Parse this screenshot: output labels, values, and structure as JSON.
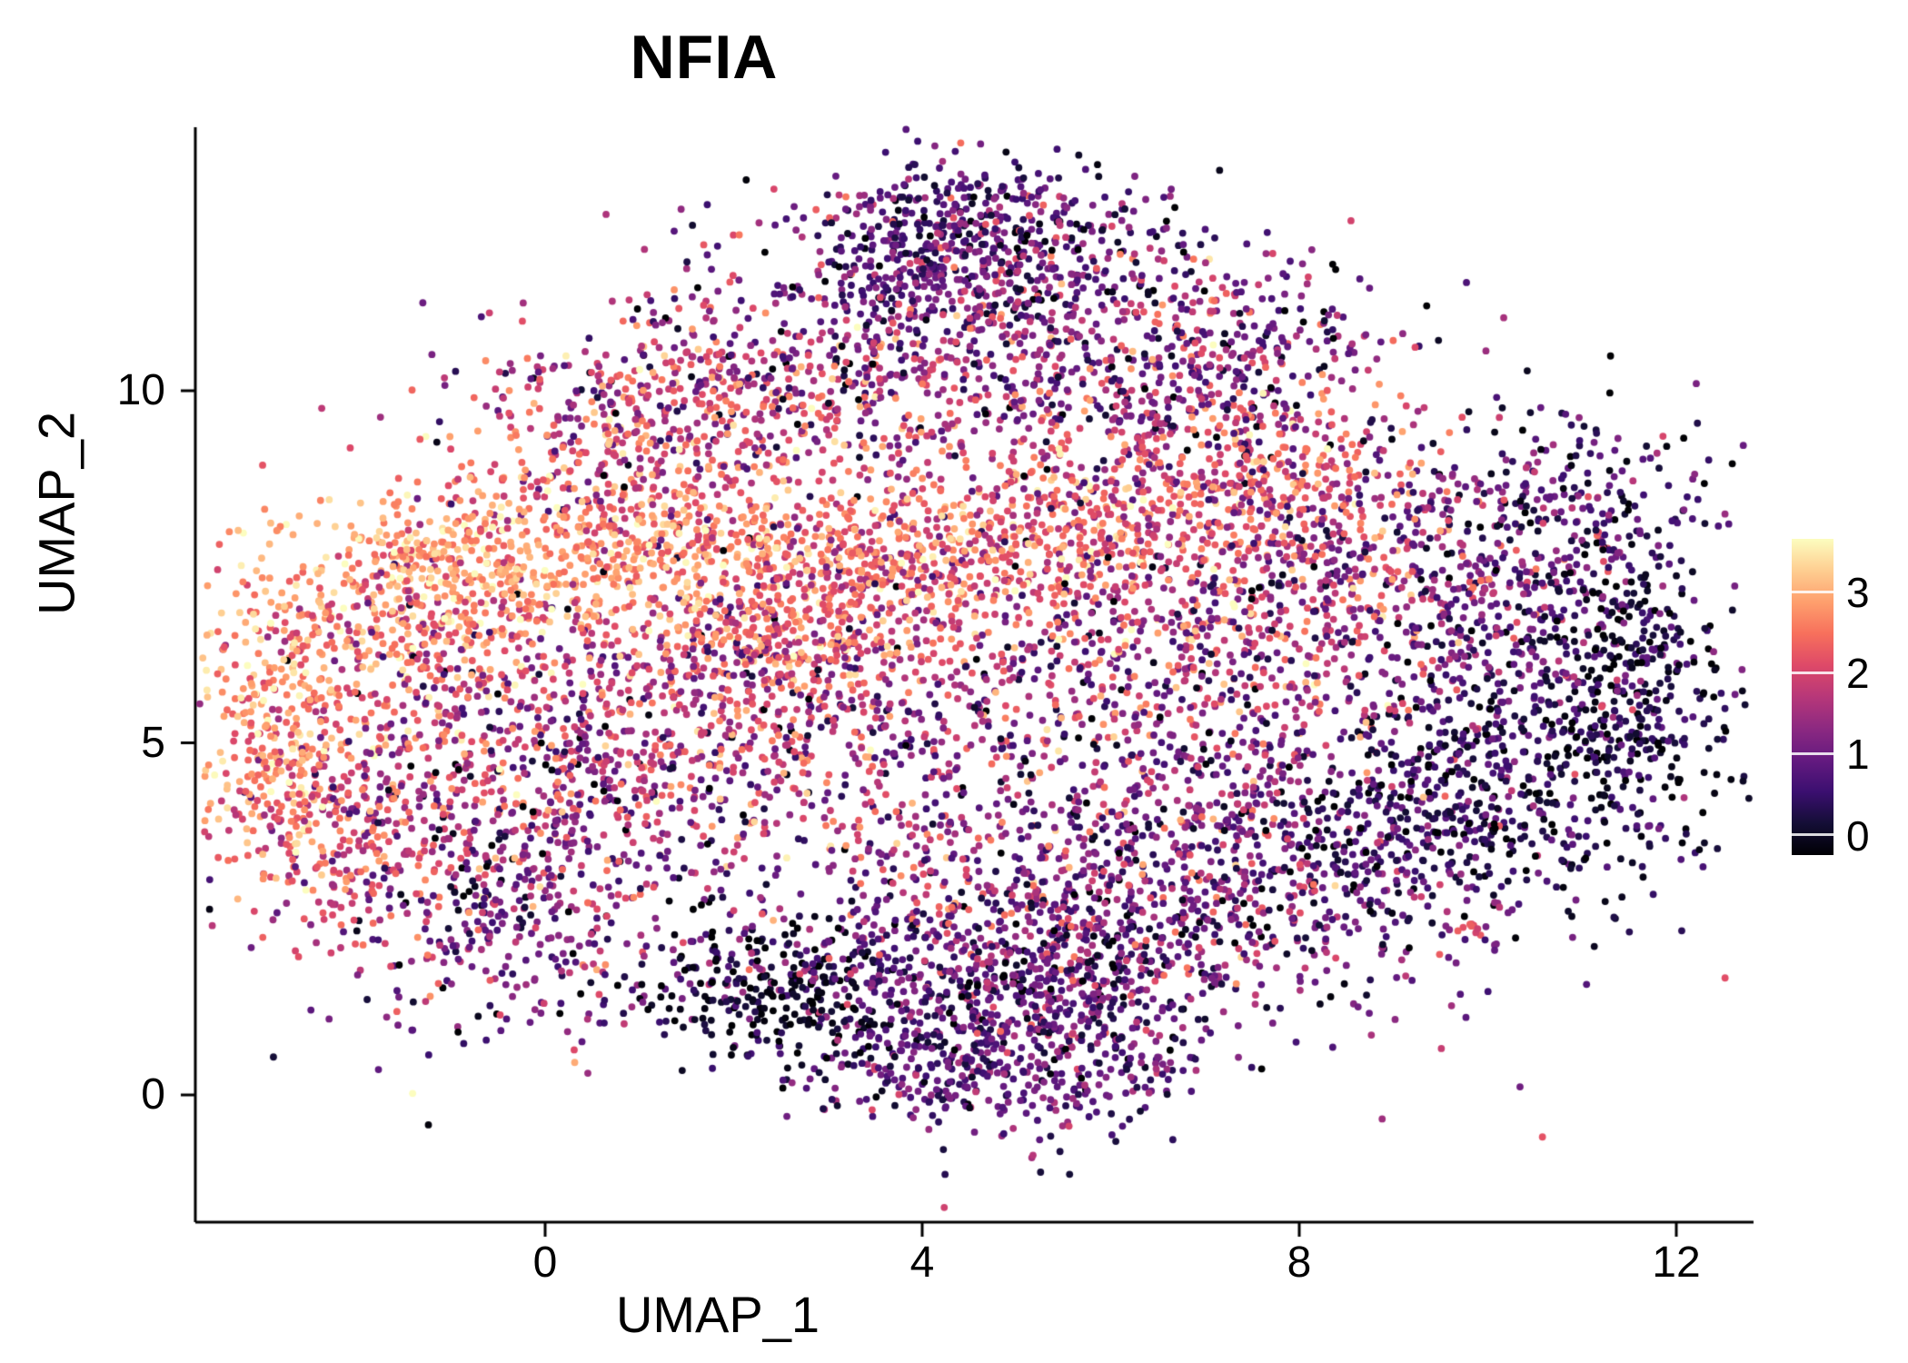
{
  "chart_data": {
    "type": "scatter",
    "title": "NFIA",
    "xlabel": "UMAP_1",
    "ylabel": "UMAP_2",
    "xlim": [
      -3.7,
      12.8
    ],
    "ylim": [
      -1.8,
      13.7
    ],
    "x_ticks": [
      0,
      4,
      8,
      12
    ],
    "y_ticks": [
      0,
      5,
      10
    ],
    "grid": false,
    "legend_position": "right",
    "color_scale": "magma",
    "expression_range": [
      0,
      3.6
    ],
    "colorbar": {
      "ticks": [
        0,
        1,
        2,
        3
      ],
      "vmin": -0.25,
      "vmax": 3.65,
      "stops": [
        [
          0.0,
          "#000004"
        ],
        [
          0.1,
          "#140e36"
        ],
        [
          0.2,
          "#3b0f70"
        ],
        [
          0.3,
          "#641a80"
        ],
        [
          0.4,
          "#8c2981"
        ],
        [
          0.5,
          "#b73779"
        ],
        [
          0.6,
          "#de4968"
        ],
        [
          0.7,
          "#f7705c"
        ],
        [
          0.8,
          "#fe9f6d"
        ],
        [
          0.9,
          "#fece91"
        ],
        [
          1.0,
          "#fcfdbf"
        ]
      ]
    },
    "clusters_format": [
      "center_x",
      "center_y",
      "sd_x",
      "sd_y",
      "n_cells",
      "expr_mean",
      "expr_sd"
    ],
    "clusters": [
      [
        4.6,
        11.9,
        1.0,
        0.6,
        480,
        0.9,
        0.5
      ],
      [
        4.4,
        10.9,
        1.7,
        0.8,
        420,
        1.3,
        0.7
      ],
      [
        3.0,
        9.6,
        2.0,
        0.7,
        380,
        1.9,
        0.7
      ],
      [
        -0.4,
        7.5,
        1.4,
        0.55,
        520,
        2.9,
        0.4
      ],
      [
        1.9,
        7.9,
        1.2,
        0.5,
        300,
        2.6,
        0.5
      ],
      [
        3.2,
        7.2,
        0.8,
        0.5,
        170,
        2.3,
        0.6
      ],
      [
        4.2,
        7.5,
        0.8,
        0.5,
        170,
        2.4,
        0.6
      ],
      [
        5.2,
        7.9,
        0.8,
        0.5,
        170,
        2.4,
        0.6
      ],
      [
        6.2,
        8.3,
        0.8,
        0.5,
        170,
        2.3,
        0.6
      ],
      [
        -2.8,
        5.2,
        0.55,
        1.0,
        340,
        2.7,
        0.5
      ],
      [
        -2.1,
        3.8,
        0.7,
        0.8,
        240,
        2.1,
        0.7
      ],
      [
        -1.0,
        5.6,
        0.9,
        0.9,
        280,
        1.9,
        0.8
      ],
      [
        -0.5,
        2.6,
        1.0,
        0.9,
        330,
        1.1,
        0.7
      ],
      [
        1.5,
        5.6,
        1.1,
        1.0,
        380,
        1.8,
        0.8
      ],
      [
        3.0,
        5.0,
        1.2,
        1.0,
        330,
        1.5,
        0.8
      ],
      [
        2.6,
        6.3,
        0.6,
        0.5,
        200,
        2.4,
        0.6
      ],
      [
        6.5,
        6.5,
        1.5,
        1.1,
        480,
        1.8,
        0.8
      ],
      [
        8.5,
        7.4,
        1.2,
        1.0,
        430,
        1.5,
        0.8
      ],
      [
        7.9,
        8.7,
        0.8,
        0.6,
        200,
        2.4,
        0.6
      ],
      [
        10.4,
        6.4,
        1.0,
        1.1,
        380,
        0.9,
        0.6
      ],
      [
        11.6,
        5.9,
        0.5,
        1.0,
        240,
        0.3,
        0.35
      ],
      [
        9.8,
        3.9,
        1.2,
        0.7,
        340,
        0.4,
        0.4
      ],
      [
        8.0,
        3.0,
        1.3,
        0.8,
        380,
        1.1,
        0.6
      ],
      [
        5.6,
        2.8,
        1.5,
        0.8,
        430,
        1.5,
        0.7
      ],
      [
        3.6,
        1.8,
        1.4,
        0.6,
        380,
        0.8,
        0.6
      ],
      [
        2.4,
        1.4,
        0.6,
        0.4,
        170,
        0.2,
        0.25
      ],
      [
        5.3,
        0.8,
        0.9,
        0.7,
        430,
        1.0,
        0.5
      ],
      [
        4.1,
        0.3,
        0.8,
        0.4,
        150,
        0.9,
        0.5
      ],
      [
        0.8,
        9.0,
        1.0,
        0.7,
        240,
        2.1,
        0.7
      ],
      [
        1.6,
        10.2,
        0.9,
        0.6,
        200,
        1.7,
        0.8
      ],
      [
        6.4,
        9.7,
        1.1,
        0.8,
        280,
        1.5,
        0.8
      ],
      [
        7.4,
        10.8,
        0.9,
        0.7,
        200,
        1.2,
        0.7
      ],
      [
        4.5,
        5.5,
        3.3,
        2.4,
        380,
        1.5,
        0.9
      ],
      [
        7.0,
        4.8,
        1.2,
        0.9,
        300,
        1.3,
        0.7
      ],
      [
        9.85,
        2.3,
        0.08,
        0.08,
        9,
        2.2,
        0.15
      ],
      [
        10.8,
        8.4,
        0.8,
        0.7,
        180,
        0.8,
        0.6
      ],
      [
        4.5,
        12.6,
        0.8,
        0.35,
        110,
        1.1,
        0.6
      ],
      [
        -1.8,
        6.6,
        0.7,
        0.6,
        200,
        2.5,
        0.6
      ],
      [
        0.3,
        4.0,
        0.9,
        0.8,
        250,
        1.6,
        0.8
      ],
      [
        6.0,
        1.9,
        0.9,
        0.5,
        200,
        0.9,
        0.6
      ],
      [
        10.3,
        4.9,
        0.9,
        0.5,
        160,
        0.5,
        0.4
      ]
    ]
  }
}
